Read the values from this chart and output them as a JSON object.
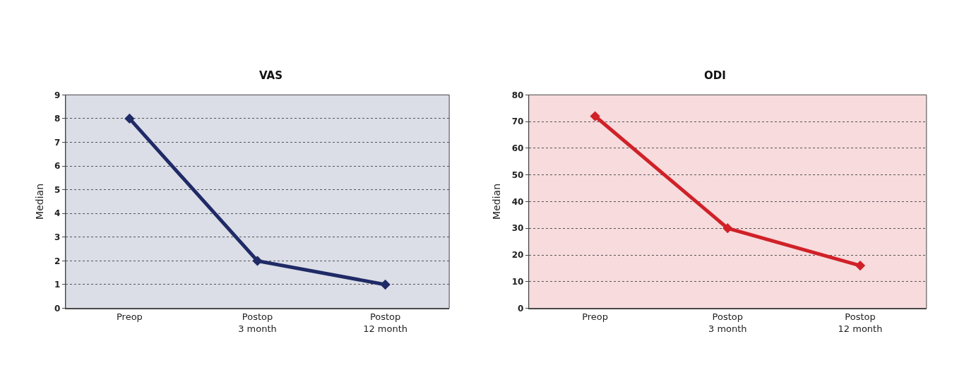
{
  "chart_data": [
    {
      "type": "line",
      "title": "VAS",
      "ylabel": "Median",
      "categories": [
        "Preop",
        "Postop\n3 month",
        "Postop\n12 month"
      ],
      "series": [
        {
          "color": "#1f2a66",
          "values": [
            8,
            2,
            1
          ]
        }
      ],
      "ylim": [
        0,
        9
      ],
      "yticks": [
        0,
        1,
        2,
        3,
        4,
        5,
        6,
        7,
        8,
        9
      ],
      "grid": "y",
      "marker": "diamond",
      "line_style": "solid"
    },
    {
      "type": "line",
      "title": "ODI",
      "ylabel": "Median",
      "categories": [
        "Preop",
        "Postop\n3 month",
        "Postop\n12 month"
      ],
      "series": [
        {
          "color": "#d02128",
          "values": [
            72,
            30,
            16
          ]
        }
      ],
      "ylim": [
        0,
        80
      ],
      "yticks": [
        0,
        10,
        20,
        30,
        40,
        50,
        60,
        70,
        80
      ],
      "grid": "y",
      "marker": "diamond",
      "line_style": "solid"
    }
  ]
}
